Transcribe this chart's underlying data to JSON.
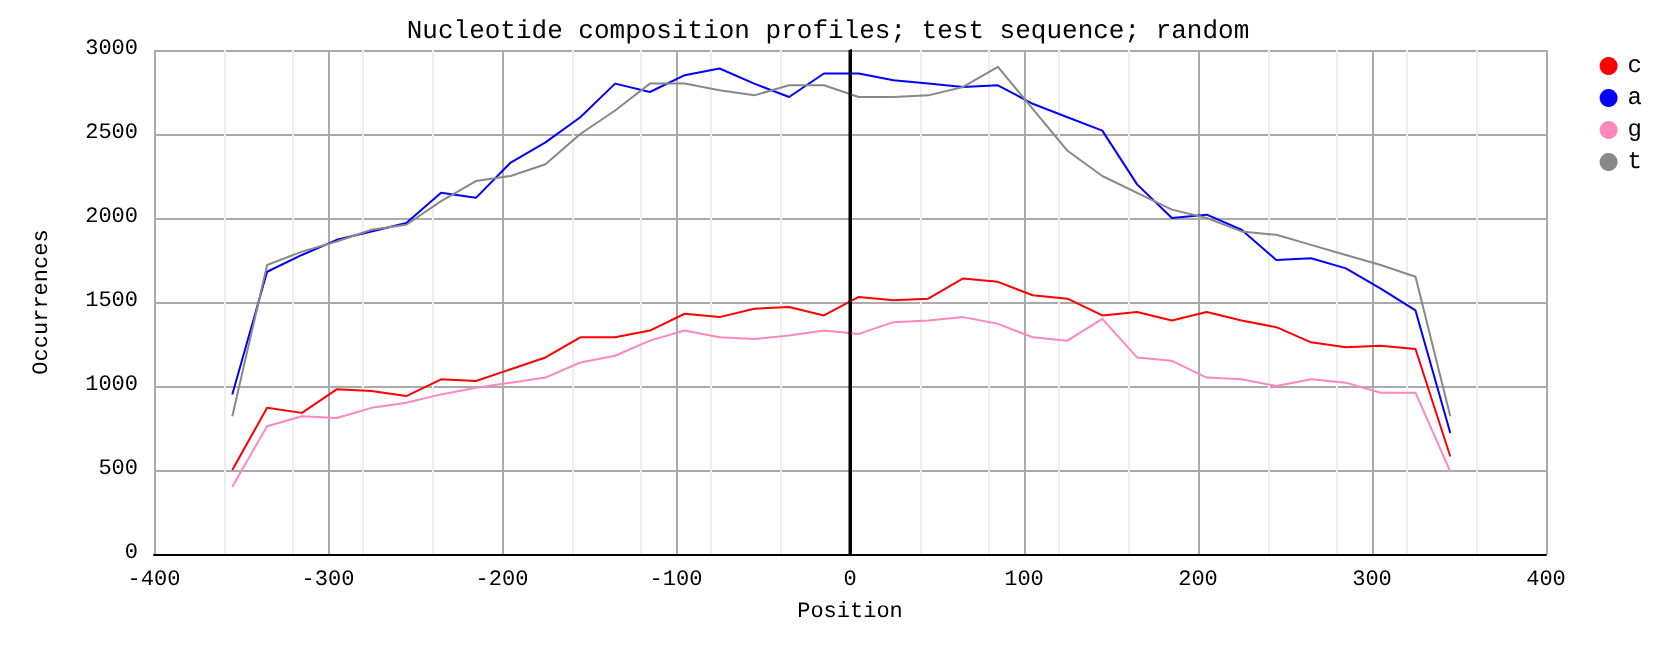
{
  "chart_data": {
    "type": "line",
    "title": "Nucleotide composition profiles; test sequence; random",
    "xlabel": "Position",
    "ylabel": "Occurrences",
    "x": [
      -355,
      -335,
      -315,
      -295,
      -275,
      -255,
      -235,
      -215,
      -195,
      -175,
      -155,
      -135,
      -115,
      -95,
      -75,
      -55,
      -35,
      -15,
      5,
      25,
      45,
      65,
      85,
      105,
      125,
      145,
      165,
      185,
      205,
      225,
      245,
      265,
      285,
      305,
      325,
      345
    ],
    "series": [
      {
        "name": "c",
        "color": "#ff0000",
        "values": [
          500,
          870,
          840,
          980,
          970,
          940,
          1040,
          1030,
          1100,
          1170,
          1290,
          1290,
          1330,
          1430,
          1410,
          1460,
          1470,
          1420,
          1530,
          1510,
          1520,
          1640,
          1620,
          1540,
          1520,
          1420,
          1440,
          1390,
          1440,
          1390,
          1350,
          1260,
          1230,
          1240,
          1220,
          580
        ]
      },
      {
        "name": "a",
        "color": "#0000ff",
        "values": [
          950,
          1680,
          1780,
          1870,
          1920,
          1970,
          2150,
          2120,
          2330,
          2450,
          2600,
          2800,
          2750,
          2850,
          2890,
          2800,
          2720,
          2860,
          2860,
          2820,
          2800,
          2780,
          2790,
          2680,
          2600,
          2520,
          2200,
          2000,
          2020,
          1930,
          1750,
          1760,
          1700,
          1580,
          1450,
          720
        ]
      },
      {
        "name": "g",
        "color": "#ff88bb",
        "values": [
          400,
          760,
          820,
          810,
          870,
          900,
          950,
          990,
          1020,
          1050,
          1140,
          1180,
          1270,
          1330,
          1290,
          1280,
          1300,
          1330,
          1310,
          1380,
          1390,
          1410,
          1370,
          1290,
          1270,
          1400,
          1170,
          1150,
          1050,
          1040,
          1000,
          1040,
          1020,
          960,
          960,
          490
        ]
      },
      {
        "name": "t",
        "color": "#888888",
        "values": [
          820,
          1720,
          1800,
          1860,
          1930,
          1960,
          2100,
          2220,
          2250,
          2320,
          2500,
          2640,
          2800,
          2800,
          2760,
          2730,
          2790,
          2790,
          2720,
          2720,
          2730,
          2780,
          2900,
          2650,
          2400,
          2250,
          2150,
          2050,
          2000,
          1920,
          1900,
          1840,
          1780,
          1720,
          1650,
          820
        ]
      }
    ],
    "xlim": [
      -400,
      400
    ],
    "xticks": [
      -400,
      -300,
      -200,
      -100,
      0,
      100,
      200,
      300,
      400
    ],
    "ylim": [
      0,
      3000
    ],
    "yticks": [
      0,
      500,
      1000,
      1500,
      2000,
      2500,
      3000
    ],
    "grid": true,
    "legend": "top right",
    "line_style": "solid",
    "ref_lines": [
      {
        "axis": "x",
        "value": 0,
        "color": "#000000"
      }
    ]
  }
}
